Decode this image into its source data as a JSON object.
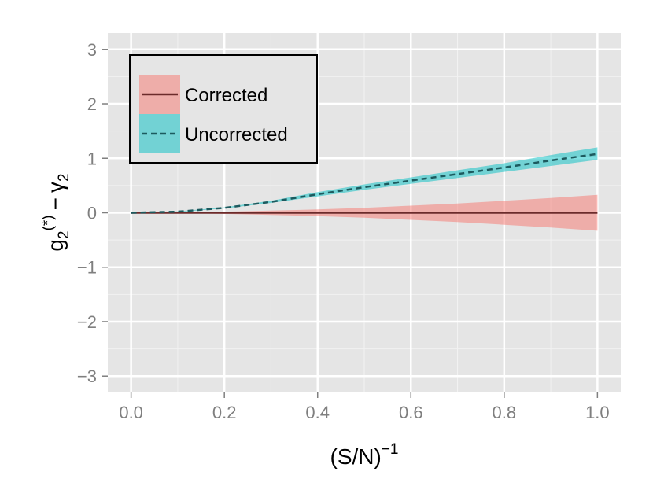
{
  "chart_data": {
    "type": "line",
    "title": "",
    "xlabel": {
      "base": "(S/N)",
      "sup": "−1"
    },
    "ylabel": {
      "g": "g",
      "g_sub": "2",
      "g_sup": "(*)",
      "minus": "−",
      "gamma": "γ",
      "gamma_sub": "2"
    },
    "xlim": [
      -0.05,
      1.05
    ],
    "ylim": [
      -3.3,
      3.3
    ],
    "x_ticks": [
      0.0,
      0.2,
      0.4,
      0.6,
      0.8,
      1.0
    ],
    "x_tick_labels": [
      "0.0",
      "0.2",
      "0.4",
      "0.6",
      "0.8",
      "1.0"
    ],
    "y_ticks": [
      -3,
      -2,
      -1,
      0,
      1,
      2,
      3
    ],
    "y_tick_labels": [
      "−3",
      "−2",
      "−1",
      "0",
      "1",
      "2",
      "3"
    ],
    "grid": true,
    "legend_position": "top-left",
    "x": [
      0.0,
      0.1,
      0.2,
      0.3,
      0.4,
      0.5,
      0.6,
      0.7,
      0.8,
      0.9,
      1.0
    ],
    "series": [
      {
        "name": "Corrected",
        "line_color": "#6b2b2b",
        "ribbon_color": "#f8766d",
        "line_style": "solid",
        "values": [
          0.0,
          0.0,
          0.0,
          0.0,
          0.0,
          0.0,
          0.0,
          0.0,
          0.0,
          0.0,
          0.0
        ],
        "lower": [
          0.0,
          -0.005,
          -0.02,
          -0.04,
          -0.06,
          -0.09,
          -0.13,
          -0.17,
          -0.22,
          -0.27,
          -0.33
        ],
        "upper": [
          0.0,
          0.005,
          0.02,
          0.04,
          0.06,
          0.09,
          0.13,
          0.17,
          0.22,
          0.27,
          0.33
        ]
      },
      {
        "name": "Uncorrected",
        "line_color": "#1c5a5e",
        "ribbon_color": "#00bfc4",
        "line_style": "dashed",
        "values": [
          0.0,
          0.02,
          0.09,
          0.2,
          0.34,
          0.47,
          0.59,
          0.71,
          0.83,
          0.96,
          1.08
        ],
        "lower": [
          0.0,
          0.015,
          0.08,
          0.18,
          0.3,
          0.42,
          0.53,
          0.64,
          0.75,
          0.86,
          0.97
        ],
        "upper": [
          0.0,
          0.025,
          0.1,
          0.22,
          0.38,
          0.52,
          0.65,
          0.78,
          0.91,
          1.06,
          1.2
        ]
      }
    ]
  }
}
